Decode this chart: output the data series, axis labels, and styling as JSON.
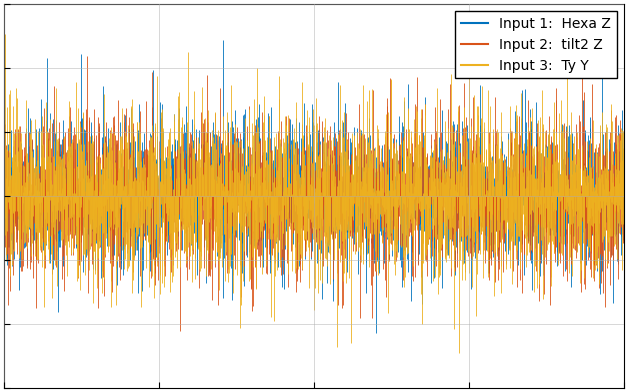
{
  "title": "",
  "legend_labels": [
    "Input 1:  Hexa Z",
    "Input 2:  tilt2 Z",
    "Input 3:  Ty Y"
  ],
  "line_colors": [
    "#0072BD",
    "#D95319",
    "#EDB120"
  ],
  "n_points": 3000,
  "seed": 42,
  "xlim": [
    0,
    3000
  ],
  "ylim": [
    -1.5,
    1.5
  ],
  "grid": true,
  "legend_loc": "upper right",
  "legend_fontsize": 10,
  "background_color": "#FFFFFF",
  "std1": 0.28,
  "std2": 0.3,
  "std3": 0.32,
  "figsize": [
    6.28,
    3.92
  ],
  "dpi": 100
}
